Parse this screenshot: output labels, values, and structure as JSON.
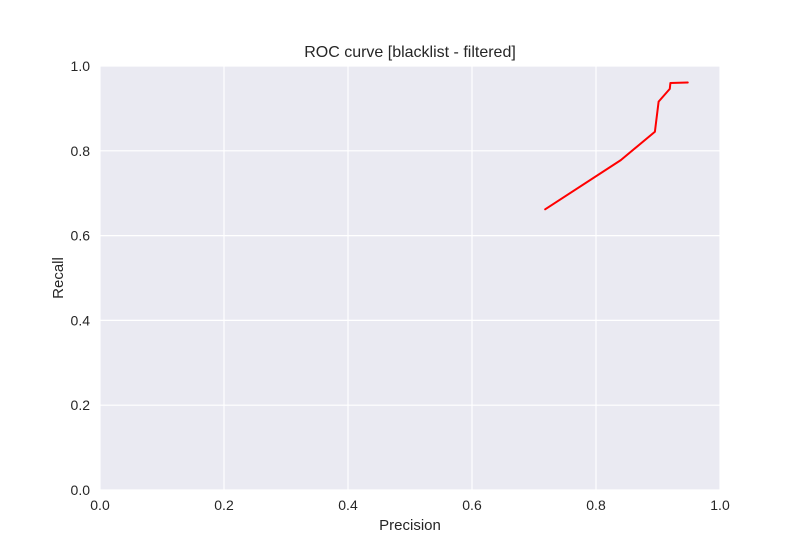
{
  "chart_data": {
    "type": "line",
    "title": "ROC curve [blacklist - filtered]",
    "xlabel": "Precision",
    "ylabel": "Recall",
    "xlim": [
      0.0,
      1.0
    ],
    "ylim": [
      0.0,
      1.0
    ],
    "xticks": [
      0.0,
      0.2,
      0.4,
      0.6,
      0.8,
      1.0
    ],
    "yticks": [
      0.0,
      0.2,
      0.4,
      0.6,
      0.8,
      1.0
    ],
    "xtick_labels": [
      "0.0",
      "0.2",
      "0.4",
      "0.6",
      "0.8",
      "1.0"
    ],
    "ytick_labels": [
      "0.0",
      "0.2",
      "0.4",
      "0.6",
      "0.8",
      "1.0"
    ],
    "grid": true,
    "series": [
      {
        "color": "#ff0000",
        "x": [
          0.718,
          0.84,
          0.895,
          0.901,
          0.919,
          0.92,
          0.948
        ],
        "y": [
          0.662,
          0.778,
          0.845,
          0.916,
          0.946,
          0.96,
          0.961
        ]
      }
    ]
  },
  "colors": {
    "plot_background": "#eaeaf2",
    "grid": "#ffffff",
    "text": "#262626"
  }
}
